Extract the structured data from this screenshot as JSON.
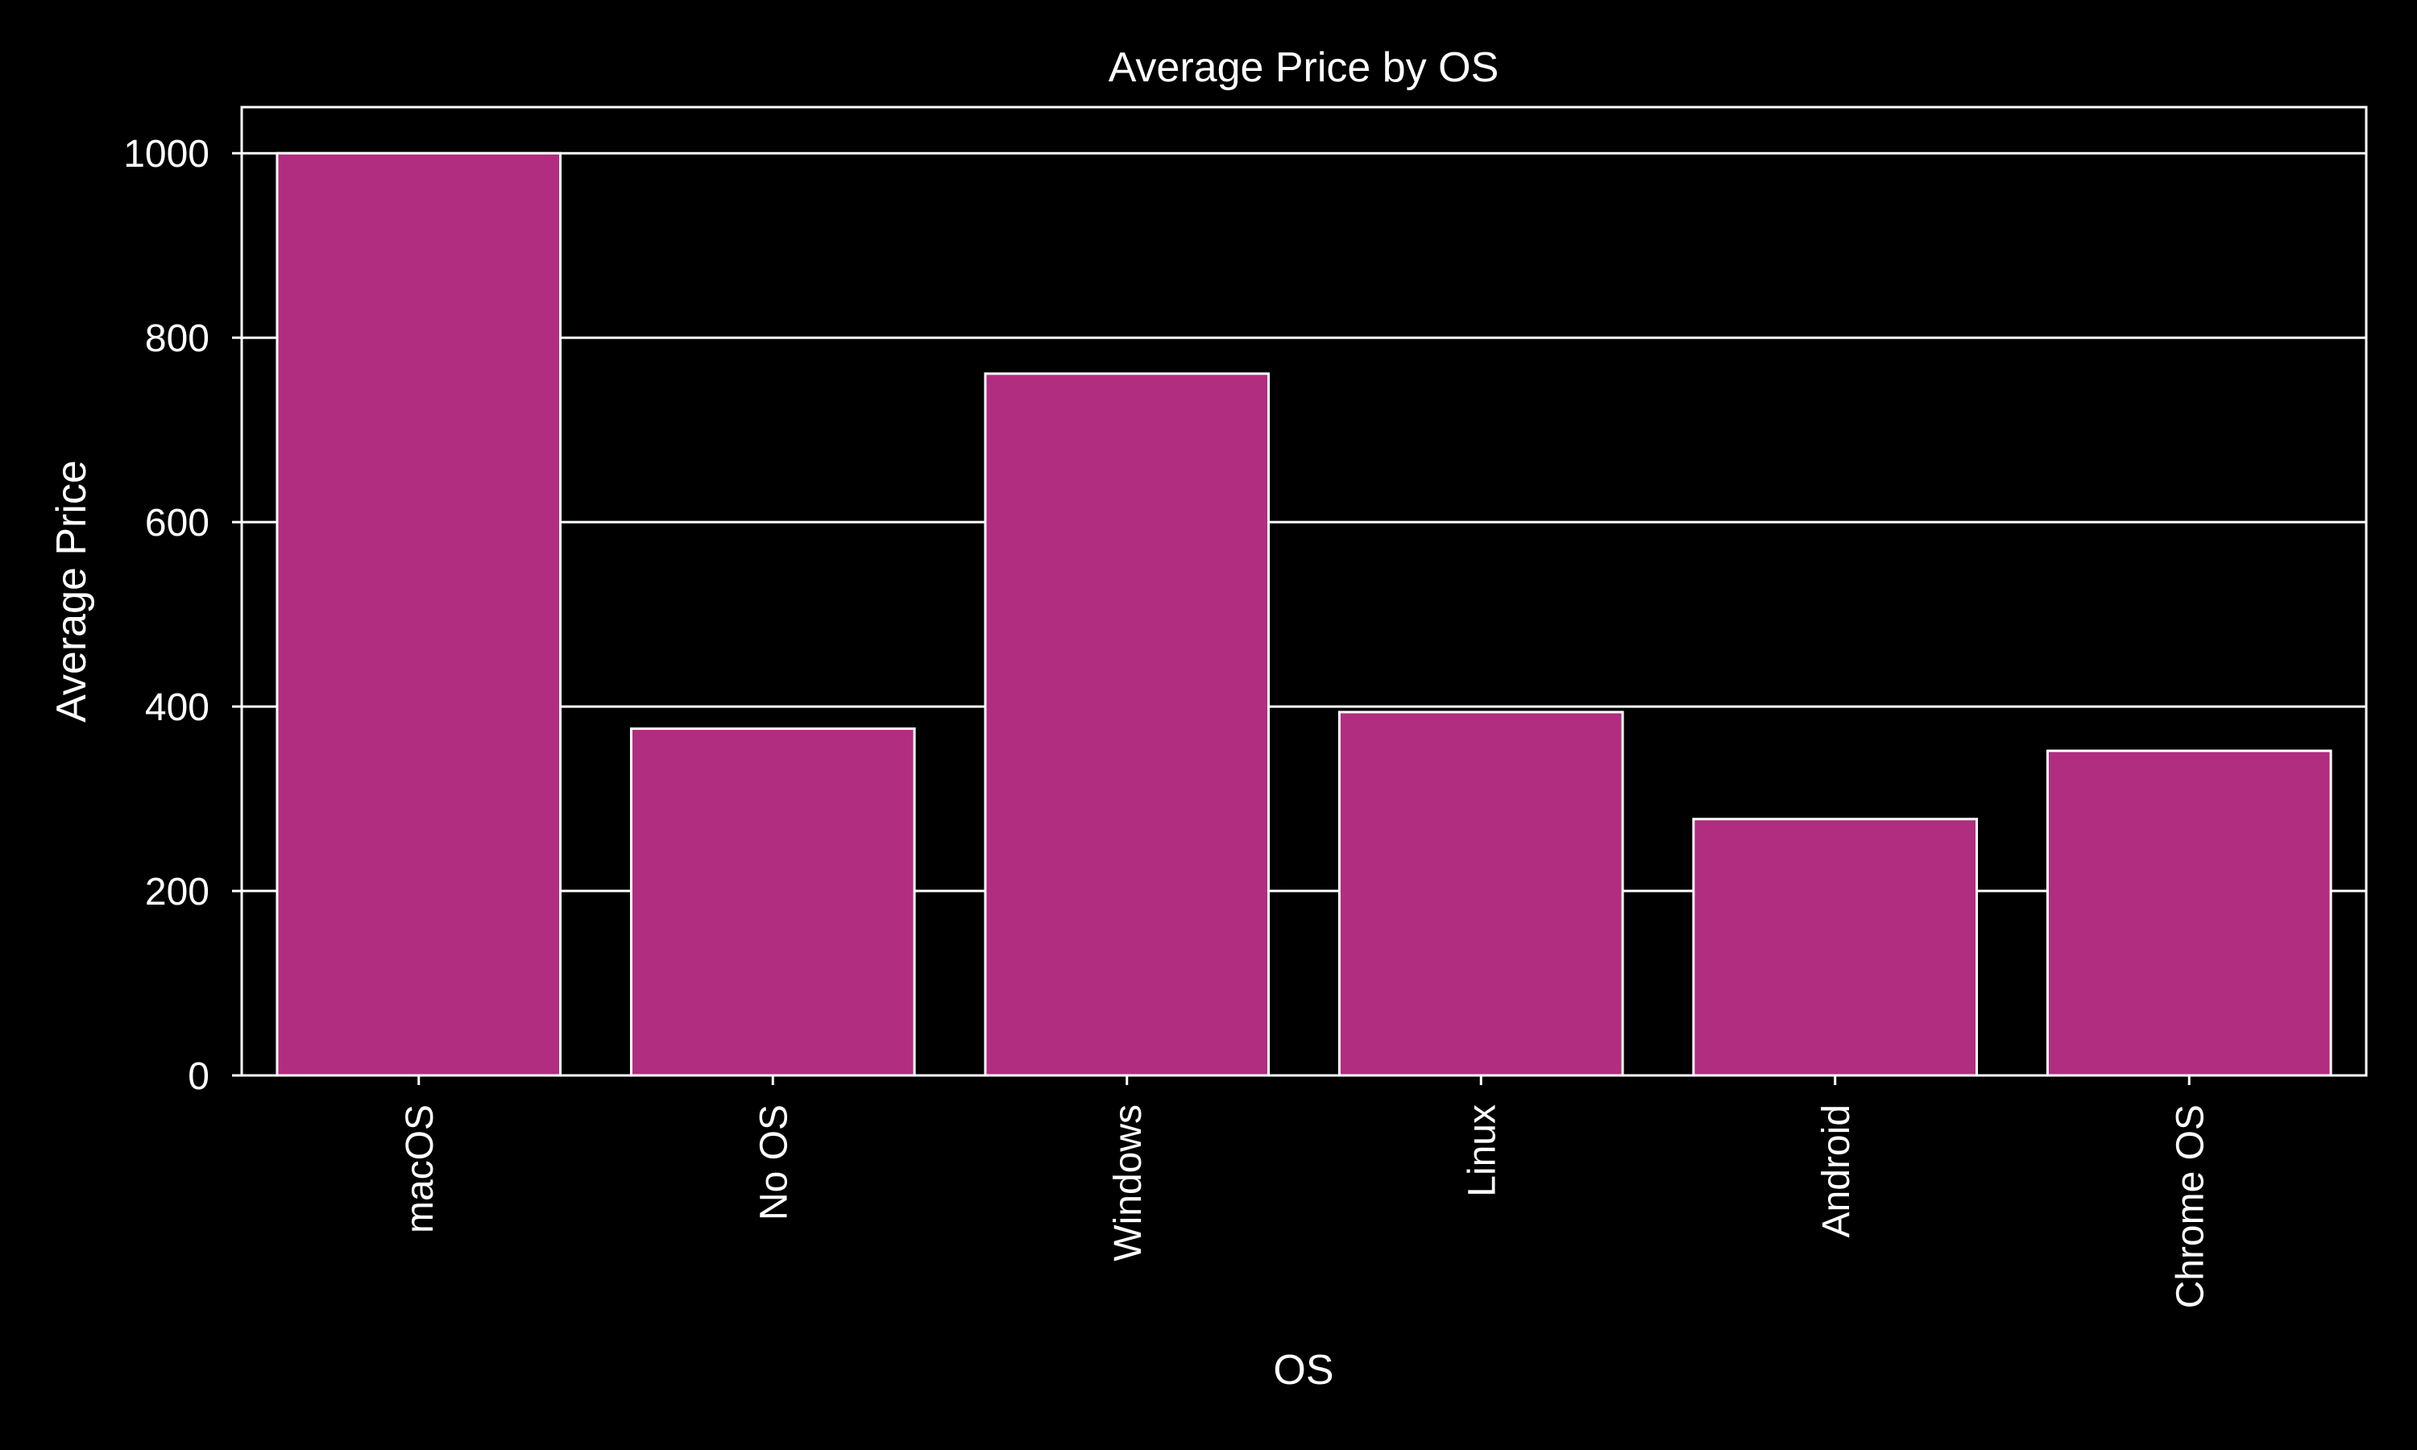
{
  "chart_data": {
    "type": "bar",
    "title": "Average Price by OS",
    "xlabel": "OS",
    "ylabel": "Average Price",
    "categories": [
      "macOS",
      "No OS",
      "Windows",
      "Linux",
      "Android",
      "Chrome OS"
    ],
    "values": [
      1000,
      376,
      761,
      394,
      278,
      352
    ],
    "ylim": [
      0,
      1050
    ],
    "yticks": [
      0,
      200,
      400,
      600,
      800,
      1000
    ],
    "grid": true,
    "legend": "none",
    "colors": {
      "bar": "#b12d80",
      "bar_edge": "#ffffff",
      "background": "#000000",
      "grid": "#ffffff",
      "text": "#ffffff"
    }
  }
}
